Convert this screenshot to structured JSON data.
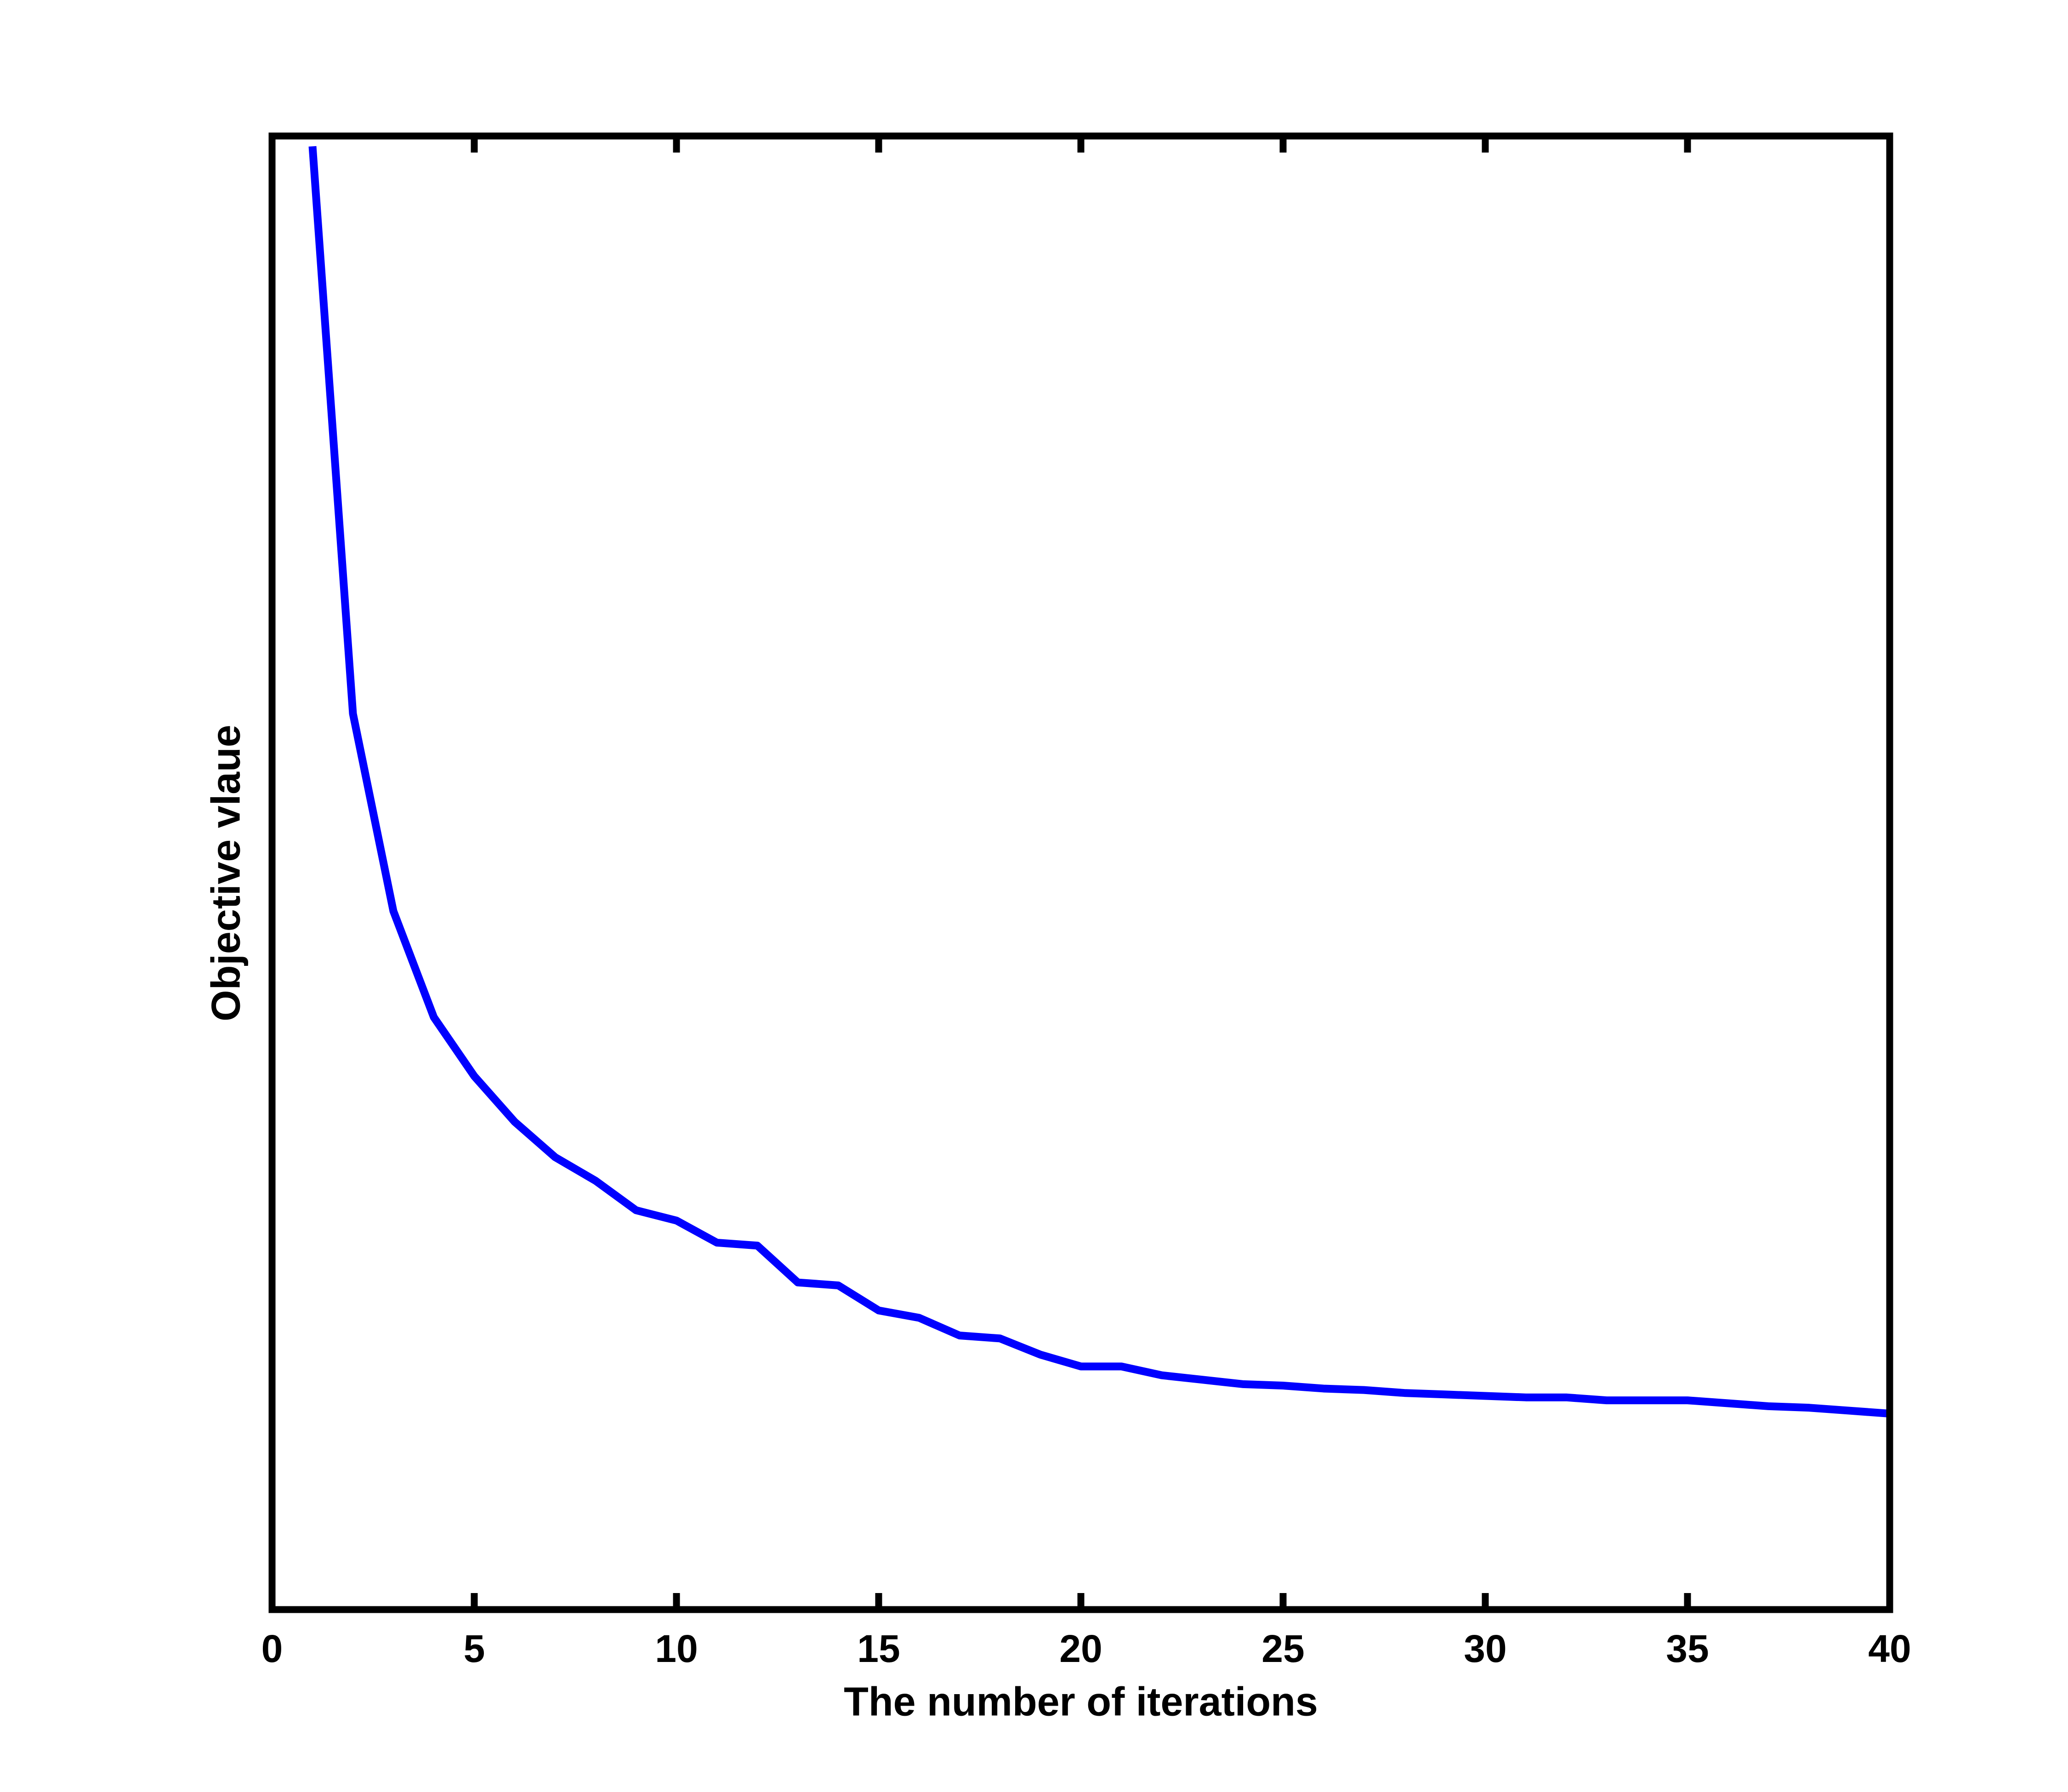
{
  "chart_data": {
    "type": "line",
    "xlabel": "The number of iterations",
    "ylabel": "Objective vlaue",
    "x": [
      1,
      2,
      3,
      4,
      5,
      6,
      7,
      8,
      9,
      10,
      11,
      12,
      13,
      14,
      15,
      16,
      17,
      18,
      19,
      20,
      21,
      22,
      23,
      24,
      25,
      26,
      27,
      28,
      29,
      30,
      31,
      32,
      33,
      34,
      35,
      36,
      37,
      38,
      39,
      40
    ],
    "series": [
      {
        "color": "#0000ff",
        "values": [
          0.993,
          0.608,
          0.474,
          0.402,
          0.362,
          0.331,
          0.307,
          0.291,
          0.271,
          0.264,
          0.249,
          0.247,
          0.222,
          0.22,
          0.203,
          0.198,
          0.186,
          0.184,
          0.173,
          0.165,
          0.165,
          0.159,
          0.156,
          0.153,
          0.152,
          0.15,
          0.149,
          0.147,
          0.146,
          0.145,
          0.144,
          0.144,
          0.142,
          0.142,
          0.142,
          0.14,
          0.138,
          0.137,
          0.135,
          0.133
        ]
      }
    ],
    "xlim": [
      0,
      40
    ],
    "xticks": [
      0,
      5,
      10,
      15,
      20,
      25,
      30,
      35,
      40
    ],
    "ylim": [
      0,
      1
    ],
    "grid": false
  }
}
